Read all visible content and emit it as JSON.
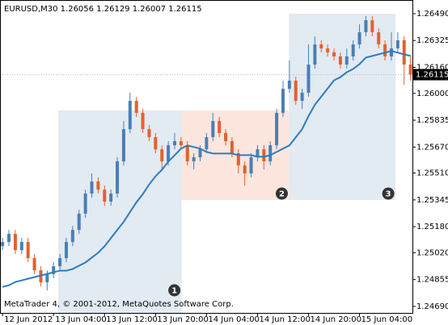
{
  "chart_data": {
    "type": "candlestick",
    "title": "EURUSD,M30  1.26056 1.26129 1.26007 1.26115",
    "footer": "MetaTrader 4, © 2001-2012, MetaQuotes Software Corp.",
    "up_color": "#4a7fb5",
    "down_color": "#e4602e",
    "ma_color": "#2f7bbd",
    "grid": false,
    "xlim": [
      -0.8,
      128.6
    ],
    "ylim": [
      1.2465,
      1.26574
    ],
    "xticks": [
      {
        "value": 0,
        "label": "12 Jun 2012"
      },
      {
        "value": 16,
        "label": "13 Jun 04:00"
      },
      {
        "value": 32,
        "label": "13 Jun 12:00"
      },
      {
        "value": 48,
        "label": "13 Jun 20:00"
      },
      {
        "value": 64,
        "label": "14 Jun 04:00"
      },
      {
        "value": 80,
        "label": "14 Jun 12:00"
      },
      {
        "value": 96,
        "label": "14 Jun 20:00"
      },
      {
        "value": 112,
        "label": "15 Jun 04:00"
      }
    ],
    "yticks": [
      {
        "value": 1.2649,
        "label": "1.26490"
      },
      1.26325,
      {
        "value": 1.2616,
        "label": "1.26160"
      },
      {
        "value": 1.26,
        "label": "1.26000"
      },
      1.25835,
      {
        "value": 1.2567,
        "label": "1.25670"
      },
      {
        "value": 1.2551,
        "label": "1.25510"
      },
      1.25345,
      {
        "value": 1.2518,
        "label": "1.25180"
      },
      {
        "value": 1.2502,
        "label": "1.25020"
      },
      1.24855,
      {
        "value": 1.2469,
        "label": "1.24690"
      }
    ],
    "last_price": 1.26115,
    "x": [
      0,
      2,
      4,
      6,
      8,
      10,
      12,
      14,
      16,
      18,
      20,
      22,
      24,
      26,
      28,
      30,
      32,
      34,
      36,
      38,
      40,
      42,
      44,
      46,
      48,
      50,
      52,
      54,
      56,
      58,
      60,
      62,
      64,
      66,
      68,
      70,
      72,
      74,
      76,
      78,
      80,
      82,
      84,
      86,
      88,
      90,
      92,
      94,
      96,
      98,
      100,
      102,
      104,
      106,
      108,
      110,
      112,
      114,
      116,
      118,
      120,
      122,
      124,
      126,
      128
    ],
    "open": [
      1.25061,
      1.25086,
      1.25136,
      1.25036,
      1.25086,
      1.24987,
      1.24912,
      1.24838,
      1.24888,
      1.24937,
      1.24987,
      1.25086,
      1.2516,
      1.2526,
      1.25384,
      1.25458,
      1.25408,
      1.25334,
      1.25384,
      1.25582,
      1.2578,
      1.25954,
      1.2588,
      1.2578,
      1.25731,
      1.25656,
      1.25582,
      1.25681,
      1.25706,
      1.25681,
      1.25582,
      1.25607,
      1.25656,
      1.25731,
      1.2583,
      1.25756,
      1.25706,
      1.25632,
      1.25557,
      1.25508,
      1.25607,
      1.25656,
      1.25582,
      1.25681,
      1.2588,
      1.26028,
      1.26078,
      1.25954,
      1.26004,
      1.26177,
      1.26301,
      1.26276,
      1.26252,
      1.26227,
      1.26177,
      1.26227,
      1.26301,
      1.26376,
      1.2645,
      1.26376,
      1.26301,
      1.26227,
      1.26276,
      1.26326,
      1.26177
    ],
    "high": [
      1.25111,
      1.2516,
      1.2516,
      1.25111,
      1.25111,
      1.25012,
      1.24937,
      1.24912,
      1.24962,
      1.25012,
      1.25111,
      1.25185,
      1.25284,
      1.25408,
      1.25508,
      1.25483,
      1.25433,
      1.25408,
      1.25607,
      1.2583,
      1.26004,
      1.25979,
      1.25904,
      1.25805,
      1.25756,
      1.25681,
      1.25706,
      1.25756,
      1.25731,
      1.25706,
      1.25632,
      1.25681,
      1.25756,
      1.2588,
      1.25855,
      1.2578,
      1.25731,
      1.25656,
      1.25582,
      1.25632,
      1.25681,
      1.25681,
      1.25706,
      1.25904,
      1.26078,
      1.26202,
      1.26103,
      1.26028,
      1.26301,
      1.26351,
      1.26326,
      1.26301,
      1.26276,
      1.26252,
      1.26276,
      1.26326,
      1.26425,
      1.26475,
      1.26475,
      1.264,
      1.26326,
      1.26376,
      1.26376,
      1.26351,
      1.26227
    ],
    "low": [
      1.25036,
      1.25061,
      1.25012,
      1.25012,
      1.24962,
      1.24888,
      1.24813,
      1.24788,
      1.24863,
      1.24912,
      1.24962,
      1.25061,
      1.25136,
      1.25235,
      1.25359,
      1.25384,
      1.25309,
      1.25309,
      1.25359,
      1.25557,
      1.25756,
      1.25855,
      1.25756,
      1.25706,
      1.25632,
      1.25532,
      1.25557,
      1.25656,
      1.25656,
      1.25557,
      1.25532,
      1.25582,
      1.25632,
      1.25706,
      1.25731,
      1.25681,
      1.25607,
      1.25508,
      1.25433,
      1.25483,
      1.25582,
      1.25532,
      1.25557,
      1.25656,
      1.25855,
      1.26004,
      1.25929,
      1.25904,
      1.25979,
      1.26152,
      1.26252,
      1.26227,
      1.26202,
      1.26152,
      1.26152,
      1.26202,
      1.26276,
      1.26351,
      1.26351,
      1.26276,
      1.26202,
      1.26202,
      1.26252,
      1.26053,
      1.26078
    ],
    "close": [
      1.25086,
      1.25136,
      1.25036,
      1.25086,
      1.24987,
      1.24912,
      1.24838,
      1.24888,
      1.24937,
      1.24987,
      1.25086,
      1.2516,
      1.2526,
      1.25384,
      1.25458,
      1.25408,
      1.25334,
      1.25384,
      1.25582,
      1.2578,
      1.25954,
      1.2588,
      1.2578,
      1.25731,
      1.25656,
      1.25582,
      1.25681,
      1.25706,
      1.25681,
      1.25582,
      1.25607,
      1.25656,
      1.25731,
      1.2583,
      1.25756,
      1.25706,
      1.25632,
      1.25557,
      1.25508,
      1.25607,
      1.25656,
      1.25582,
      1.25681,
      1.2588,
      1.26028,
      1.26078,
      1.25954,
      1.26004,
      1.26177,
      1.26301,
      1.26276,
      1.26252,
      1.26227,
      1.26177,
      1.26227,
      1.26301,
      1.26376,
      1.2645,
      1.26376,
      1.26301,
      1.26227,
      1.26276,
      1.26326,
      1.26177,
      1.26115
    ],
    "ma_values": [
      1.2481,
      1.2482,
      1.2484,
      1.2485,
      1.2486,
      1.2487,
      1.2488,
      1.2489,
      1.249,
      1.2491,
      1.2491,
      1.2492,
      1.2494,
      1.2496,
      1.2499,
      1.2502,
      1.2506,
      1.2511,
      1.2516,
      1.2521,
      1.2527,
      1.2533,
      1.2538,
      1.2544,
      1.2549,
      1.2553,
      1.2558,
      1.2562,
      1.2566,
      1.2568,
      1.2567,
      1.2566,
      1.2564,
      1.2563,
      1.2563,
      1.2563,
      1.2563,
      1.2562,
      1.2562,
      1.2562,
      1.2561,
      1.2561,
      1.2562,
      1.2564,
      1.2566,
      1.2568,
      1.2573,
      1.2578,
      1.2586,
      1.2593,
      1.2598,
      1.2603,
      1.2608,
      1.261,
      1.2613,
      1.2615,
      1.2618,
      1.2622,
      1.2623,
      1.2624,
      1.2625,
      1.2626,
      1.2625,
      1.2624,
      1.2623
    ],
    "zones": [
      {
        "label": "1",
        "color": "#e2eaf2",
        "x": [
          17.5,
          56.2
        ],
        "y": [
          1.2465,
          1.25895
        ]
      },
      {
        "label": "2",
        "color": "#fce6de",
        "x": [
          56.2,
          89.9
        ],
        "y": [
          1.25344,
          1.25895
        ]
      },
      {
        "label": "3",
        "color": "#e2eaf2",
        "x": [
          89.9,
          123.3
        ],
        "y": [
          1.25344,
          1.2649
        ]
      }
    ]
  }
}
